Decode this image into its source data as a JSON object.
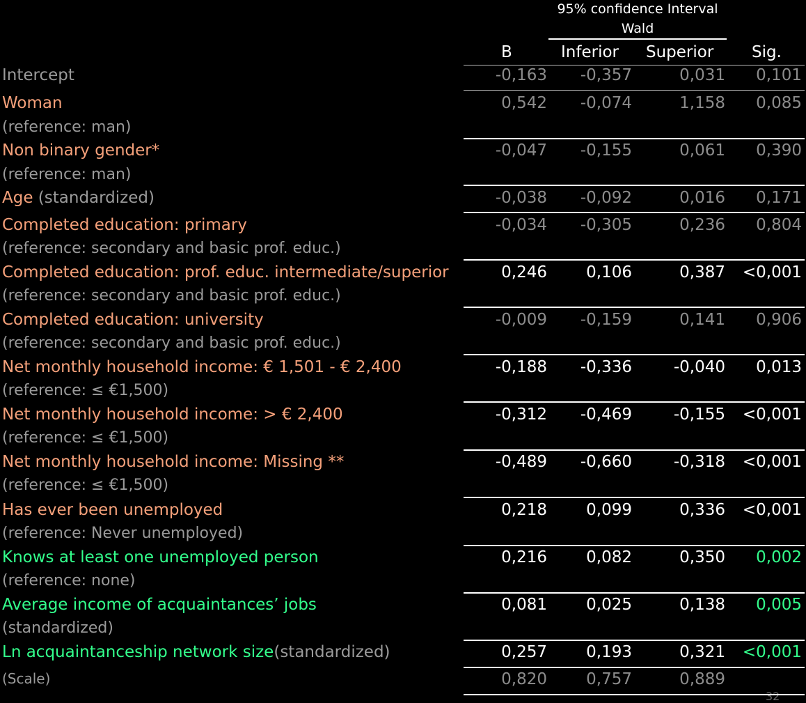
{
  "header": {
    "ci_title": "95% confidence Interval",
    "ci_sub": "Wald",
    "col_b": "B",
    "col_inf": "Inferior",
    "col_sup": "Superior",
    "col_sig": "Sig."
  },
  "rows": [
    {
      "label": "Intercept",
      "extra": "",
      "ref": "",
      "b": "-0,163",
      "inf": "-0,357",
      "sup": "0,031",
      "sig": "0,101"
    },
    {
      "label": "Woman",
      "extra": "",
      "ref": "(reference: man)",
      "b": "0,542",
      "inf": "-0,074",
      "sup": "1,158",
      "sig": "0,085"
    },
    {
      "label": "Non binary gender*",
      "extra": "",
      "ref": "(reference: man)",
      "b": "-0,047",
      "inf": "-0,155",
      "sup": "0,061",
      "sig": "0,390"
    },
    {
      "label": "Age",
      "extra": " (standardized)",
      "ref": "",
      "b": "-0,038",
      "inf": "-0,092",
      "sup": "0,016",
      "sig": "0,171"
    },
    {
      "label": "Completed education: primary",
      "extra": "",
      "ref": "(reference: secondary and basic prof. educ.)",
      "b": "-0,034",
      "inf": "-0,305",
      "sup": "0,236",
      "sig": "0,804"
    },
    {
      "label": "Completed education: prof. educ. intermediate/superior",
      "extra": "",
      "ref": "(reference: secondary and basic prof. educ.)",
      "b": "0,246",
      "inf": "0,106",
      "sup": "0,387",
      "sig": "<0,001"
    },
    {
      "label": "Completed education: university",
      "extra": "",
      "ref": "(reference: secondary and basic prof. educ.)",
      "b": "-0,009",
      "inf": "-0,159",
      "sup": "0,141",
      "sig": "0,906"
    },
    {
      "label": "Net monthly household income: € 1,501 - € 2,400",
      "extra": "",
      "ref": "(reference: ≤ €1,500)",
      "b": "-0,188",
      "inf": "-0,336",
      "sup": "-0,040",
      "sig": "0,013"
    },
    {
      "label": "Net monthly household income: > € 2,400",
      "extra": "",
      "ref": "(reference: ≤ €1,500)",
      "b": "-0,312",
      "inf": "-0,469",
      "sup": "-0,155",
      "sig": "<0,001"
    },
    {
      "label": "Net monthly household income: Missing **",
      "extra": "",
      "ref": "(reference: ≤ €1,500)",
      "b": "-0,489",
      "inf": "-0,660",
      "sup": "-0,318",
      "sig": "<0,001"
    },
    {
      "label": "Has ever been unemployed",
      "extra": "",
      "ref": "(reference: Never unemployed)",
      "b": "0,218",
      "inf": "0,099",
      "sup": "0,336",
      "sig": "<0,001"
    },
    {
      "label": "Knows at least one unemployed person",
      "extra": "",
      "ref": "(reference: none)",
      "b": "0,216",
      "inf": "0,082",
      "sup": "0,350",
      "sig": "0,002"
    },
    {
      "label": "Average income of acquaintances’ jobs",
      "extra": "",
      "ref": "(standardized)",
      "b": "0,081",
      "inf": "0,025",
      "sup": "0,138",
      "sig": "0,005"
    },
    {
      "label": "Ln acquaintanceship network size",
      "extra": "(standardized)",
      "ref": "",
      "b": "0,257",
      "inf": "0,193",
      "sup": "0,321",
      "sig": "<0,001"
    },
    {
      "label": "(Scale)",
      "extra": "",
      "ref": "",
      "b": "0,820",
      "inf": "0,757",
      "sup": "0,889",
      "sig": ""
    }
  ],
  "page_number": "32",
  "colors": {
    "background": "#000000",
    "orange": "#f4a07a",
    "green": "#33ff8c",
    "grey": "#9a9a9a",
    "white": "#ffffff"
  }
}
